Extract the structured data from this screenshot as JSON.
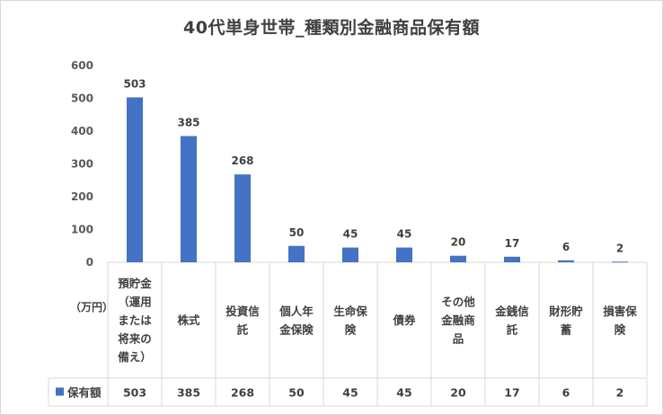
{
  "chart_data": {
    "type": "bar",
    "title": "40代単身世帯_種類別金融商品保有額",
    "unit_label": "（万円）",
    "categories": [
      [
        "預貯金",
        "（運用",
        "または",
        "将来の",
        "備え）"
      ],
      [
        "株式"
      ],
      [
        "投資信",
        "託"
      ],
      [
        "個人年",
        "金保険"
      ],
      [
        "生命保",
        "険"
      ],
      [
        "債券"
      ],
      [
        "その他",
        "金融商",
        "品"
      ],
      [
        "金銭信",
        "託"
      ],
      [
        "財形貯",
        "蓄"
      ],
      [
        "損害保",
        "険"
      ]
    ],
    "series": [
      {
        "name": "保有額",
        "values": [
          503,
          385,
          268,
          50,
          45,
          45,
          20,
          17,
          6,
          2
        ]
      }
    ],
    "yticks": [
      "0",
      "100",
      "200",
      "300",
      "400",
      "500",
      "600"
    ],
    "ylim": [
      0,
      600
    ],
    "grid": false,
    "legend": "data-table",
    "colors": {
      "bar": "#4472c4",
      "axis": "#d9d9d9"
    }
  }
}
